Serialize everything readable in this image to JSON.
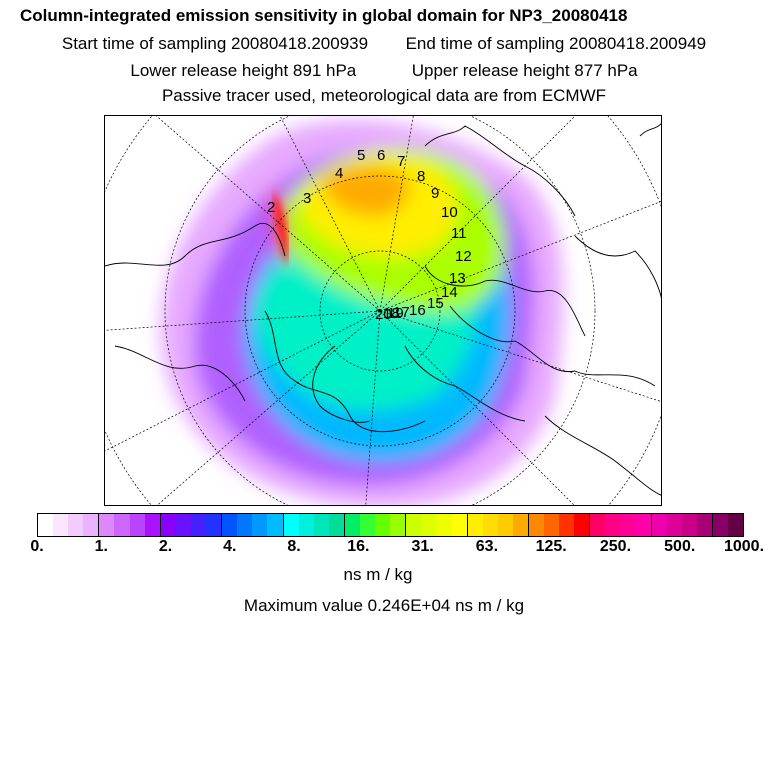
{
  "header": {
    "title": "Column-integrated emission sensitivity in global domain for NP3_20080418",
    "start": "Start time of sampling 20080418.200939",
    "end": "End time of sampling 20080418.200949",
    "lower": "Lower release height  891 hPa",
    "upper": "Upper release height  877 hPa",
    "tracer": "Passive tracer used, meteorological data are from ECMWF"
  },
  "trajectory_labels": [
    "2",
    "3",
    "4",
    "5",
    "6",
    "7",
    "8",
    "9",
    "10",
    "11",
    "12",
    "13",
    "14",
    "15",
    "16",
    "17",
    "18",
    "19",
    "20"
  ],
  "colorbar": {
    "tick_labels": [
      "0.",
      "1.",
      "2.",
      "4.",
      "8.",
      "16.",
      "31.",
      "63.",
      "125.",
      "250.",
      "500.",
      "1000."
    ],
    "colors": [
      "#ffffff",
      "#fbe6ff",
      "#f3ccff",
      "#ebb3ff",
      "#dd88ff",
      "#cc66ff",
      "#bb44ff",
      "#aa11ff",
      "#8a00ff",
      "#6a11ff",
      "#4422ff",
      "#2233ff",
      "#0055ff",
      "#0077ff",
      "#0099ff",
      "#00bbff",
      "#00ffff",
      "#00f0dd",
      "#00e6bb",
      "#00dd99",
      "#00ee66",
      "#33ff33",
      "#66ff00",
      "#99ff00",
      "#ccff00",
      "#ddff00",
      "#eeff00",
      "#ffff00",
      "#ffee00",
      "#ffdd00",
      "#ffcc00",
      "#ffaa00",
      "#ff8800",
      "#ff6600",
      "#ff3300",
      "#ff0000",
      "#ff0066",
      "#ff0088",
      "#ff0099",
      "#ff00aa",
      "#ee00aa",
      "#dd0099",
      "#cc0088",
      "#aa0077",
      "#880066",
      "#660044"
    ],
    "unit": "ns m / kg"
  },
  "max_value": "Maximum value  0.246E+04 ns m / kg"
}
